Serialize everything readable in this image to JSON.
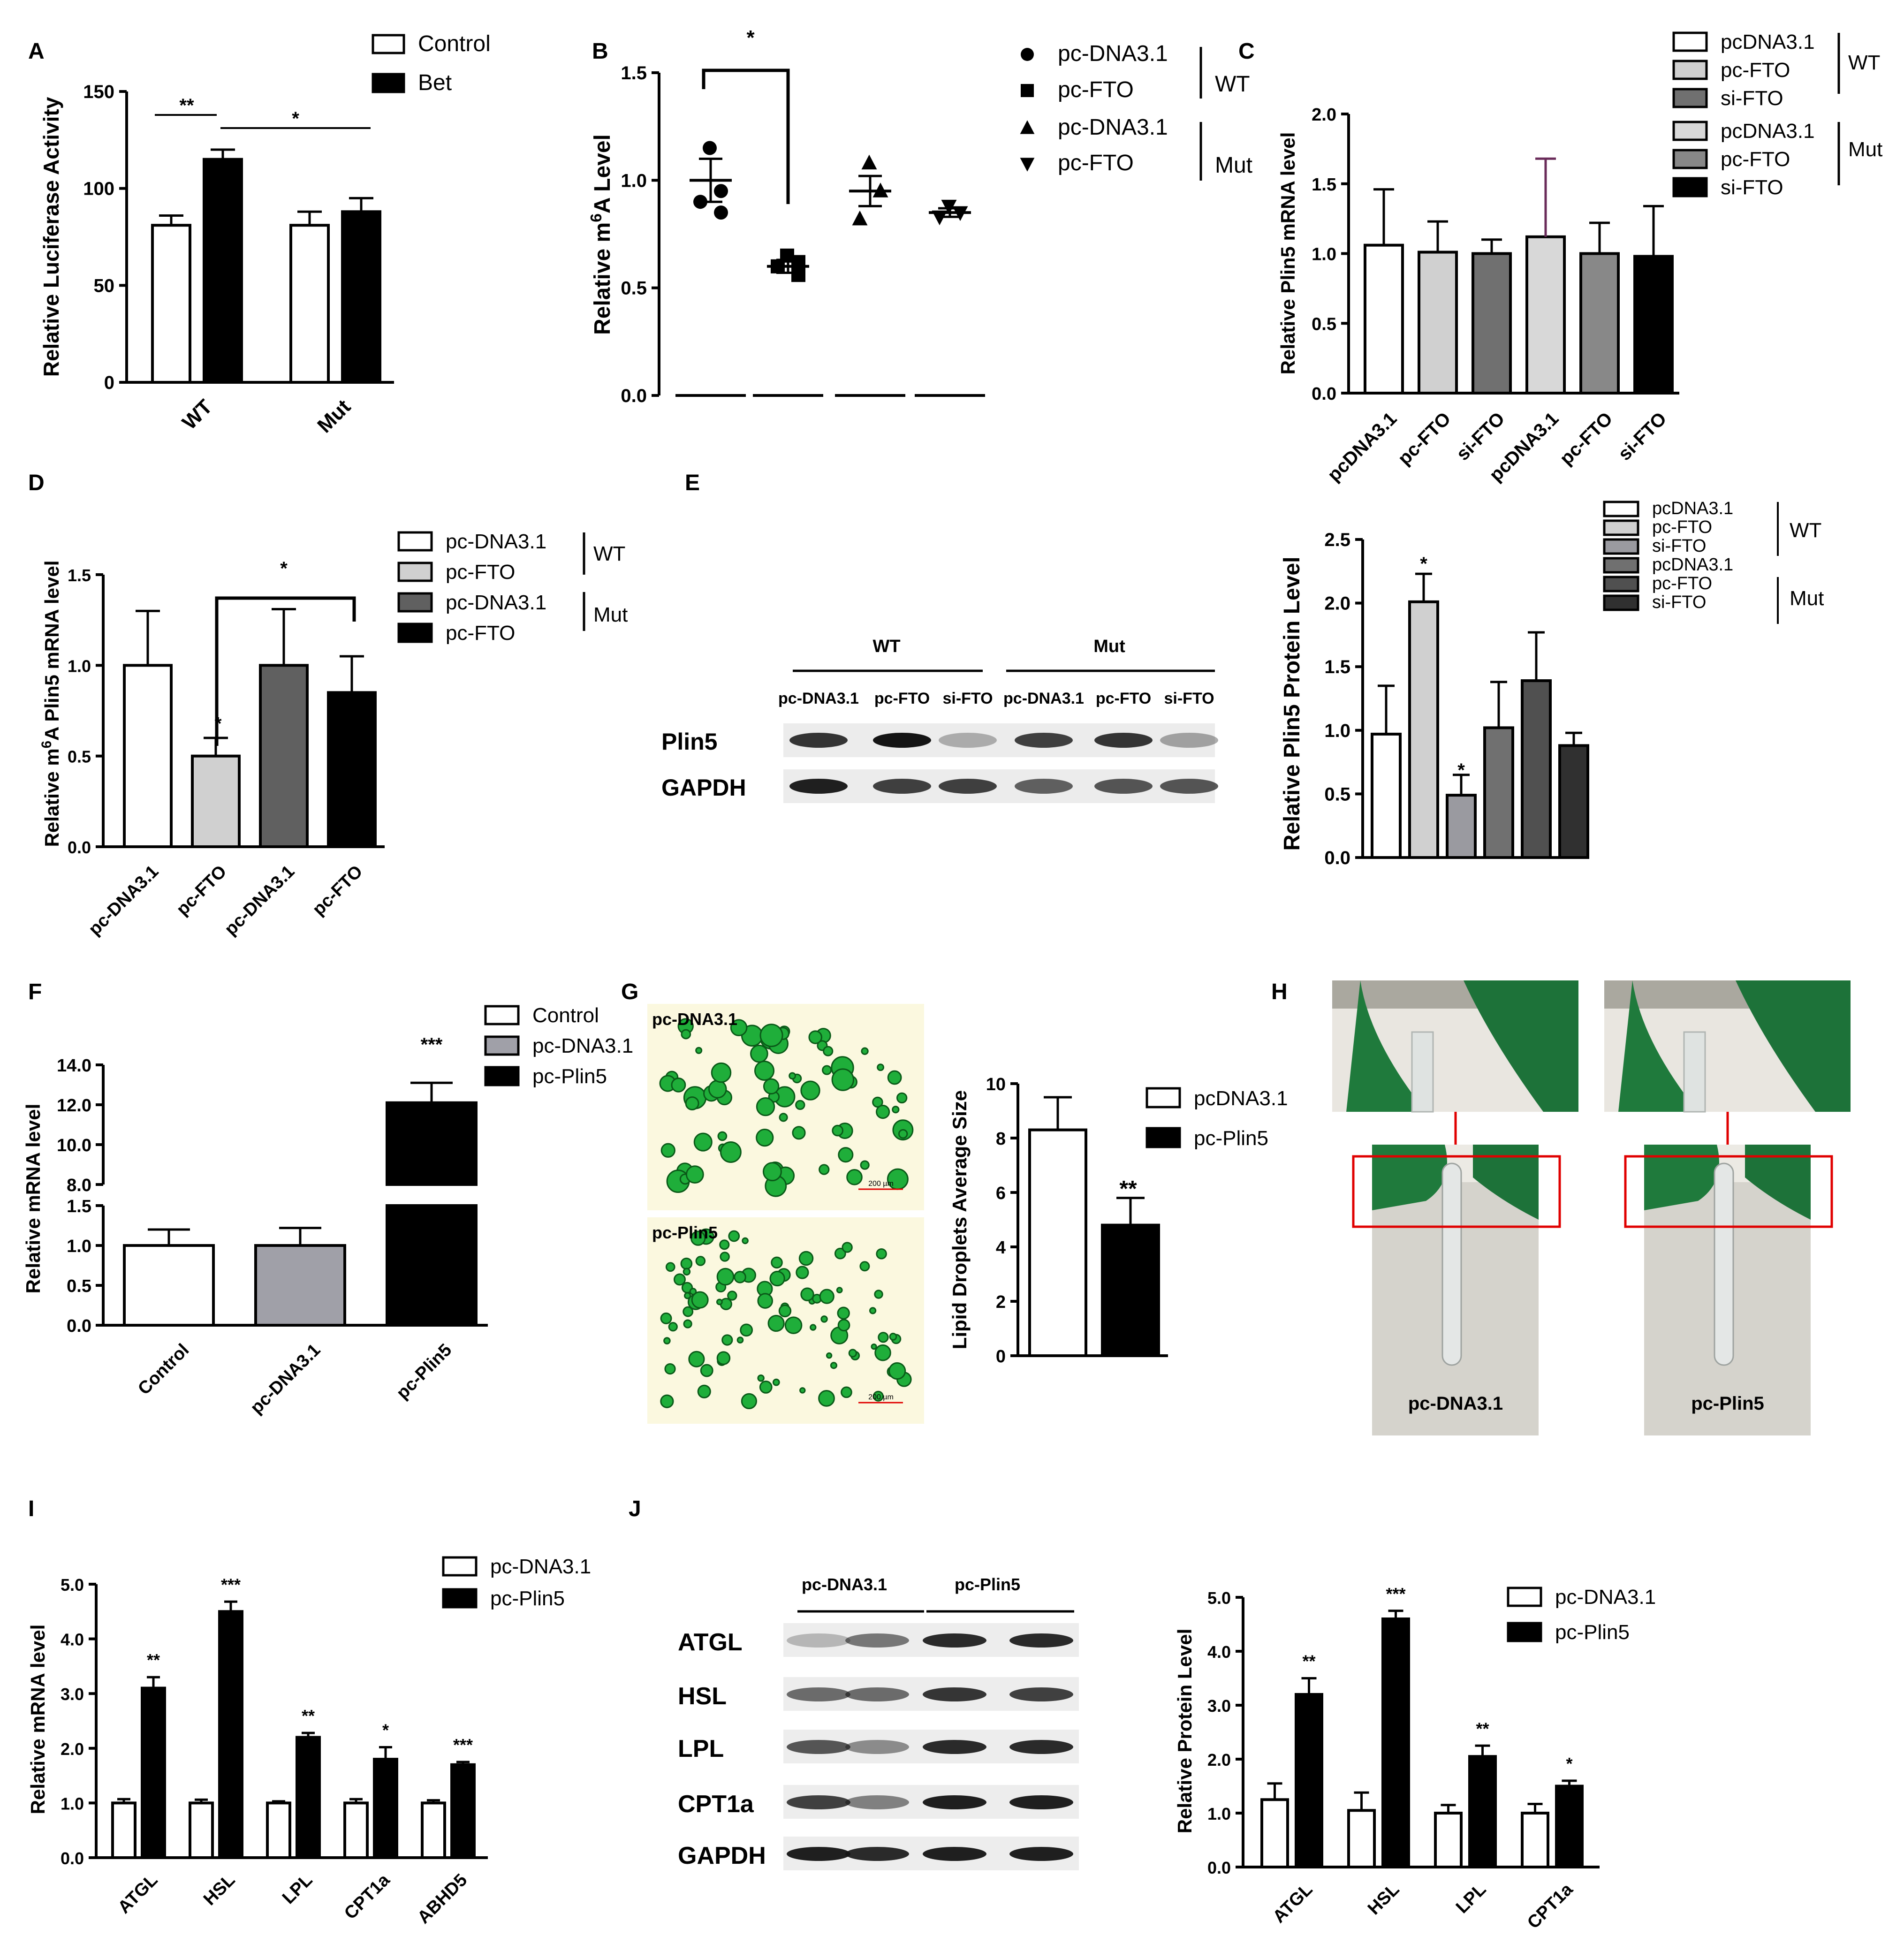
{
  "panels": {
    "A": {
      "letter": "A",
      "chart_data": {
        "type": "bar",
        "categories": [
          "WT",
          "Mut"
        ],
        "series": [
          {
            "name": "Control",
            "values": [
              81,
              81
            ],
            "errors": [
              5,
              7
            ],
            "color": "#ffffff"
          },
          {
            "name": "Bet",
            "values": [
              115,
              88
            ],
            "errors": [
              5,
              7
            ],
            "color": "#000000"
          }
        ],
        "ylabel": "Relative Luciferase Activity",
        "ylim": [
          0,
          150
        ],
        "yticks": [
          "0",
          "50",
          "100",
          "150"
        ],
        "annotations": [
          "**",
          "*"
        ]
      }
    },
    "B": {
      "letter": "B",
      "chart_data": {
        "type": "scatter",
        "categories": [
          "pc-DNA3.1",
          "pc-FTO",
          "pc-DNA3.1",
          "pc-FTO"
        ],
        "groups": [
          {
            "name": "pc-DNA3.1",
            "marker": "circle",
            "mean": 1.0,
            "sem": 0.1,
            "points": [
              1.15,
              0.95,
              0.9,
              0.85
            ]
          },
          {
            "name": "pc-FTO",
            "marker": "square",
            "mean": 0.6,
            "sem": 0.03,
            "points": [
              0.65,
              0.62,
              0.6,
              0.56
            ]
          },
          {
            "name": "pc-DNA3.1",
            "marker": "triangle-up",
            "mean": 0.95,
            "sem": 0.07,
            "points": [
              1.08,
              0.95,
              0.82
            ]
          },
          {
            "name": "pc-FTO",
            "marker": "triangle-down",
            "mean": 0.85,
            "sem": 0.02,
            "points": [
              0.88,
              0.85,
              0.83
            ]
          }
        ],
        "ylabel": "Relative m6A  Level",
        "ylim": [
          0,
          1.5
        ],
        "yticks": [
          "0.0",
          "0.5",
          "1.0",
          "1.5"
        ],
        "group_labels": [
          "WT",
          "Mut"
        ],
        "annotations": [
          "*"
        ]
      }
    },
    "C": {
      "letter": "C",
      "chart_data": {
        "type": "bar",
        "categories": [
          "pcDNA3.1",
          "pc-FTO",
          "si-FTO",
          "pcDNA3.1",
          "pc-FTO",
          "si-FTO"
        ],
        "values": [
          1.06,
          1.01,
          1.0,
          1.12,
          1.0,
          0.98
        ],
        "errors": [
          0.4,
          0.22,
          0.1,
          0.56,
          0.22,
          0.36
        ],
        "colors": [
          "#ffffff",
          "#d0d0d0",
          "#707070",
          "#d8d8d8",
          "#888888",
          "#000000"
        ],
        "legend": [
          "pcDNA3.1",
          "pc-FTO",
          "si-FTO",
          "pcDNA3.1",
          "pc-FTO",
          "si-FTO"
        ],
        "group_labels": [
          "WT",
          "Mut"
        ],
        "ylabel": "Relative Plin5 mRNA level",
        "ylim": [
          0,
          2.0
        ],
        "yticks": [
          "0.0",
          "0.5",
          "1.0",
          "1.5",
          "2.0"
        ]
      }
    },
    "D": {
      "letter": "D",
      "chart_data": {
        "type": "bar",
        "categories": [
          "pc-DNA3.1",
          "pc-FTO",
          "pc-DNA3.1",
          "pc-FTO"
        ],
        "values": [
          1.0,
          0.5,
          1.0,
          0.85
        ],
        "errors": [
          0.3,
          0.1,
          0.31,
          0.2
        ],
        "colors": [
          "#ffffff",
          "#d0d0d0",
          "#606060",
          "#000000"
        ],
        "legend": [
          "pc-DNA3.1",
          "pc-FTO",
          "pc-DNA3.1",
          "pc-FTO"
        ],
        "group_labels": [
          "WT",
          "Mut"
        ],
        "ylabel": "Relative  m6A Plin5 mRNA level",
        "ylim": [
          0,
          1.5
        ],
        "yticks": [
          "0.0",
          "0.5",
          "1.0",
          "1.5"
        ],
        "annotations": [
          "*",
          "*"
        ]
      }
    },
    "E": {
      "letter": "E",
      "blot": {
        "groups": [
          "WT",
          "Mut"
        ],
        "lanes": [
          "pc-DNA3.1",
          "pc-FTO",
          "si-FTO",
          "pc-DNA3.1",
          "pc-FTO",
          "si-FTO"
        ],
        "rows": [
          "Plin5",
          "GAPDH"
        ]
      },
      "chart_data": {
        "type": "bar",
        "categories": [
          "pcDNA3.1",
          "pc-FTO",
          "si-FTO",
          "pcDNA3.1",
          "pc-FTO",
          "si-FTO"
        ],
        "values": [
          0.97,
          2.01,
          0.49,
          1.02,
          1.39,
          0.88
        ],
        "errors": [
          0.38,
          0.22,
          0.16,
          0.36,
          0.38,
          0.1
        ],
        "colors": [
          "#ffffff",
          "#d0d0d0",
          "#9a9aa0",
          "#707070",
          "#505050",
          "#303030"
        ],
        "legend": [
          "pcDNA3.1",
          "pc-FTO",
          "si-FTO",
          "pcDNA3.1",
          "pc-FTO",
          "si-FTO"
        ],
        "group_labels": [
          "WT",
          "Mut"
        ],
        "ylabel": "Relative Plin5 Protein  Level",
        "ylim": [
          0,
          2.5
        ],
        "yticks": [
          "0.0",
          "0.5",
          "1.0",
          "1.5",
          "2.0",
          "2.5"
        ],
        "annotations": [
          "*",
          "*"
        ]
      }
    },
    "F": {
      "letter": "F",
      "chart_data": {
        "type": "bar",
        "categories": [
          "Control",
          "pc-DNA3.1",
          "pc-Plin5"
        ],
        "values": [
          1.0,
          1.0,
          12.1
        ],
        "errors": [
          0.2,
          0.22,
          1.0
        ],
        "colors": [
          "#ffffff",
          "#a0a0a8",
          "#000000"
        ],
        "legend": [
          "Control",
          "pc-DNA3.1",
          "pc-Plin5"
        ],
        "ylabel": "Relative mRNA level",
        "ylim_lower": [
          0,
          1.5
        ],
        "ylim_upper": [
          8,
          14
        ],
        "yticks_lower": [
          "0.0",
          "0.5",
          "1.0",
          "1.5"
        ],
        "yticks_upper": [
          "8.0",
          "10.0",
          "12.0",
          "14.0"
        ],
        "annotations": [
          "***"
        ]
      }
    },
    "G": {
      "letter": "G",
      "images": [
        "pc-DNA3.1",
        "pc-Plin5"
      ],
      "scale_bar": "200 µm",
      "chart_data": {
        "type": "bar",
        "categories": [
          "pcDNA3.1",
          "pc-Plin5"
        ],
        "values": [
          8.3,
          4.8
        ],
        "errors": [
          1.2,
          1.0
        ],
        "colors": [
          "#ffffff",
          "#000000"
        ],
        "legend": [
          "pcDNA3.1",
          "pc-Plin5"
        ],
        "ylabel": "Lipid Droplets Average Size",
        "ylim": [
          0,
          10
        ],
        "yticks": [
          "0",
          "2",
          "4",
          "6",
          "8",
          "10"
        ],
        "annotations": [
          "**"
        ]
      }
    },
    "H": {
      "letter": "H",
      "labels": [
        "pc-DNA3.1",
        "pc-Plin5"
      ]
    },
    "I": {
      "letter": "I",
      "chart_data": {
        "type": "bar",
        "categories": [
          "ATGL",
          "HSL",
          "LPL",
          "CPT1a",
          "ABHD5"
        ],
        "series": [
          {
            "name": "pc-DNA3.1",
            "values": [
              1.0,
              1.0,
              1.0,
              1.0,
              1.0
            ],
            "errors": [
              0.07,
              0.06,
              0.03,
              0.07,
              0.05
            ],
            "color": "#ffffff"
          },
          {
            "name": "pc-Plin5",
            "values": [
              3.1,
              4.5,
              2.2,
              1.8,
              1.7
            ],
            "errors": [
              0.2,
              0.18,
              0.08,
              0.22,
              0.05
            ],
            "color": "#000000"
          }
        ],
        "ylabel": "Relative mRNA level",
        "ylim": [
          0,
          5.0
        ],
        "yticks": [
          "0.0",
          "1.0",
          "2.0",
          "3.0",
          "4.0",
          "5.0"
        ],
        "annotations": [
          "**",
          "***",
          "**",
          "*",
          "***"
        ]
      }
    },
    "J": {
      "letter": "J",
      "blot": {
        "groups": [
          "pc-DNA3.1",
          "pc-Plin5"
        ],
        "rows": [
          "ATGL",
          "HSL",
          "LPL",
          "CPT1a",
          "GAPDH"
        ]
      },
      "chart_data": {
        "type": "bar",
        "categories": [
          "ATGL",
          "HSL",
          "LPL",
          "CPT1a"
        ],
        "series": [
          {
            "name": "pc-DNA3.1",
            "values": [
              1.25,
              1.05,
              1.0,
              1.0
            ],
            "errors": [
              0.3,
              0.33,
              0.15,
              0.17
            ],
            "color": "#ffffff"
          },
          {
            "name": "pc-Plin5",
            "values": [
              3.2,
              4.6,
              2.05,
              1.5
            ],
            "errors": [
              0.3,
              0.15,
              0.2,
              0.1
            ],
            "color": "#000000"
          }
        ],
        "ylabel": "Relative Protein Level",
        "ylim": [
          0,
          5.0
        ],
        "yticks": [
          "0.0",
          "1.0",
          "2.0",
          "3.0",
          "4.0",
          "5.0"
        ],
        "annotations": [
          "**",
          "***",
          "**",
          "*"
        ]
      }
    }
  }
}
